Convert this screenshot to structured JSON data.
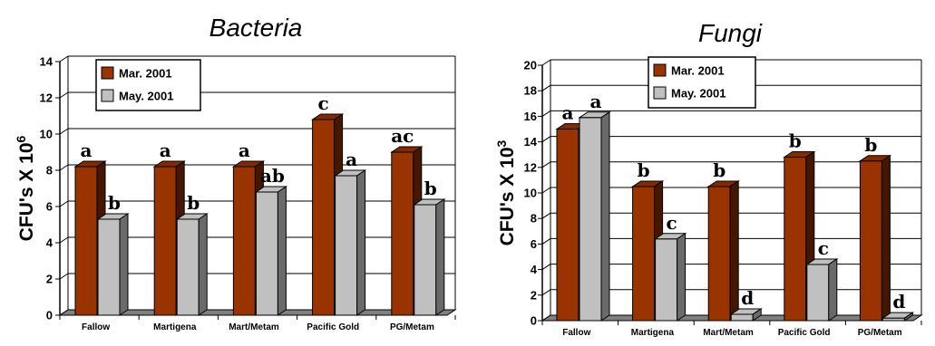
{
  "chart_data": [
    {
      "type": "bar",
      "title": "Bacteria",
      "ylabel_main": "CFU's X 10",
      "ylabel_exp": "6",
      "xlabel": "",
      "ylim": [
        0,
        14
      ],
      "yticks": [
        0,
        2,
        4,
        6,
        8,
        10,
        12,
        14
      ],
      "categories": [
        "Fallow",
        "Martigena",
        "Mart/Metam",
        "Pacific Gold",
        "PG/Metam"
      ],
      "series": [
        {
          "name": "Mar. 2001",
          "color": "#993300",
          "values": [
            8.2,
            8.2,
            8.2,
            10.8,
            9.0
          ],
          "labels": [
            "a",
            "a",
            "a",
            "c",
            "ac"
          ]
        },
        {
          "name": "May. 2001",
          "color": "#c0c0c0",
          "values": [
            5.3,
            5.3,
            6.8,
            7.7,
            6.1
          ],
          "labels": [
            "b",
            "b",
            "ab",
            "a",
            "b"
          ]
        }
      ],
      "legend": "top-left",
      "grid": true
    },
    {
      "type": "bar",
      "title": "Fungi",
      "ylabel_main": "CFU's X 10",
      "ylabel_exp": "3",
      "xlabel": "",
      "ylim": [
        0,
        20
      ],
      "yticks": [
        0,
        2,
        4,
        6,
        8,
        10,
        12,
        14,
        16,
        18,
        20
      ],
      "categories": [
        "Fallow",
        "Martigena",
        "Mart/Metam",
        "Pacific Gold",
        "PG/Metam"
      ],
      "series": [
        {
          "name": "Mar. 2001",
          "color": "#993300",
          "values": [
            15.0,
            10.5,
            10.5,
            12.8,
            12.5
          ],
          "labels": [
            "a",
            "b",
            "b",
            "b",
            "b"
          ]
        },
        {
          "name": "May. 2001",
          "color": "#c0c0c0",
          "values": [
            15.9,
            6.4,
            0.5,
            4.4,
            0.2
          ],
          "labels": [
            "a",
            "c",
            "d",
            "c",
            "d"
          ]
        }
      ],
      "legend": "top-left",
      "grid": true
    }
  ]
}
